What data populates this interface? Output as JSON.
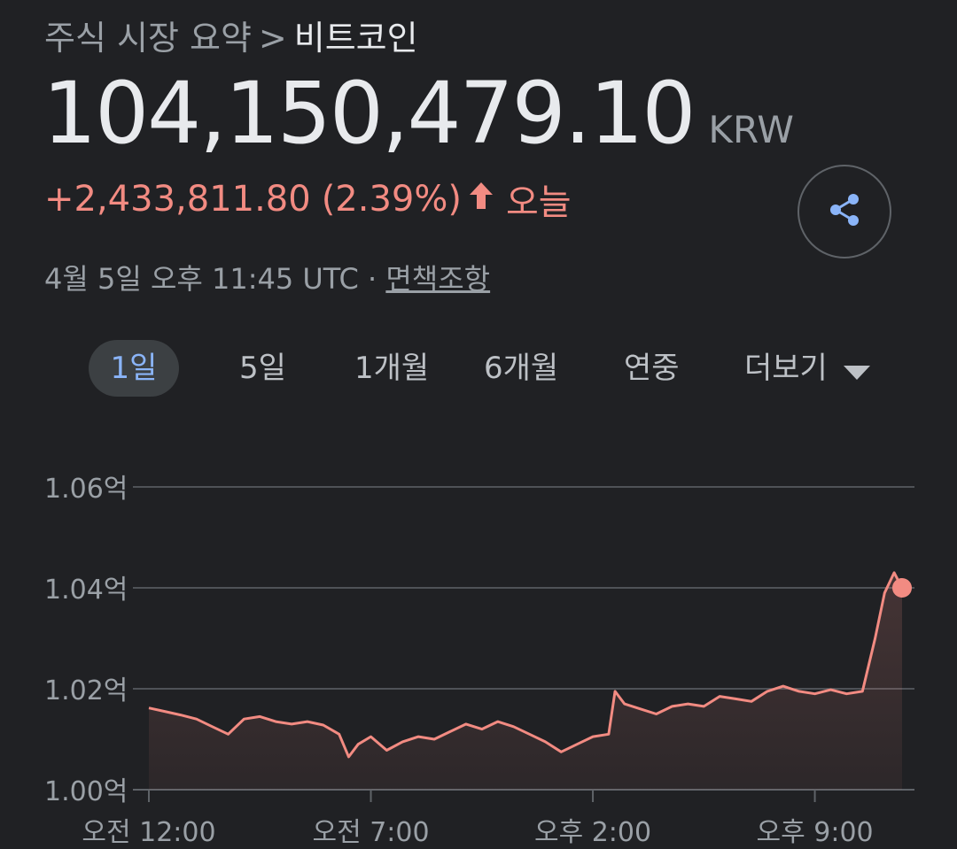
{
  "breadcrumb": {
    "parent": "주식 시장 요약",
    "separator": ">",
    "current": "비트코인"
  },
  "quote": {
    "price": "104,150,479.10",
    "currency": "KRW",
    "change": "+2,433,811.80",
    "change_percent": "(2.39%)",
    "direction_icon": "arrow-up-icon",
    "period": "오늘",
    "timestamp": "4월 5일 오후 11:45 UTC",
    "dot": "·",
    "disclaimer": "면책조항"
  },
  "share": {
    "icon": "share-icon"
  },
  "tabs": [
    {
      "label": "1일",
      "active": true
    },
    {
      "label": "5일",
      "active": false
    },
    {
      "label": "1개월",
      "active": false
    },
    {
      "label": "6개월",
      "active": false
    },
    {
      "label": "연중",
      "active": false
    },
    {
      "label": "더보기",
      "active": false,
      "icon": "dropdown-triangle-icon"
    }
  ],
  "colors": {
    "background": "#202124",
    "text_primary": "#e8eaed",
    "text_secondary": "#9aa0a6",
    "positive": "#f28b82",
    "active_tab_text": "#8ab4f8",
    "active_tab_bg": "#3c4043",
    "gridline": "#5f6368"
  },
  "chart_data": {
    "type": "area",
    "x_ticks": [
      "오전 12:00",
      "오전 7:00",
      "오후 2:00",
      "오후 9:00"
    ],
    "y_ticks": [
      "1.06억",
      "1.04억",
      "1.02억",
      "1.00억"
    ],
    "y_tick_values": [
      106000000,
      104000000,
      102000000,
      100000000
    ],
    "ylim": [
      100000000,
      106000000
    ],
    "xlim_hours": [
      0,
      23.75
    ],
    "x_tick_hours": [
      0,
      7,
      14,
      21
    ],
    "grid": true,
    "series": [
      {
        "color": "#f28b82",
        "x_hours": [
          0,
          0.5,
          1.0,
          1.5,
          2.0,
          2.5,
          3.0,
          3.5,
          4.0,
          4.5,
          5.0,
          5.5,
          6.0,
          6.3,
          6.6,
          7.0,
          7.5,
          8.0,
          8.5,
          9.0,
          9.5,
          10.0,
          10.5,
          11.0,
          11.5,
          12.0,
          12.5,
          13.0,
          13.5,
          14.0,
          14.5,
          14.7,
          15.0,
          15.5,
          16.0,
          16.5,
          17.0,
          17.5,
          18.0,
          18.5,
          19.0,
          19.5,
          20.0,
          20.5,
          21.0,
          21.5,
          22.0,
          22.5,
          22.9,
          23.2,
          23.5,
          23.75
        ],
        "values": [
          101620000,
          101550000,
          101480000,
          101400000,
          101250000,
          101100000,
          101400000,
          101450000,
          101350000,
          101300000,
          101350000,
          101280000,
          101100000,
          100650000,
          100900000,
          101050000,
          100780000,
          100950000,
          101050000,
          101000000,
          101150000,
          101300000,
          101200000,
          101350000,
          101250000,
          101100000,
          100950000,
          100750000,
          100900000,
          101050000,
          101100000,
          101950000,
          101700000,
          101600000,
          101500000,
          101650000,
          101700000,
          101650000,
          101850000,
          101800000,
          101750000,
          101950000,
          102050000,
          101950000,
          101900000,
          101980000,
          101900000,
          101950000,
          103000000,
          103900000,
          104300000,
          104000000
        ]
      }
    ]
  }
}
